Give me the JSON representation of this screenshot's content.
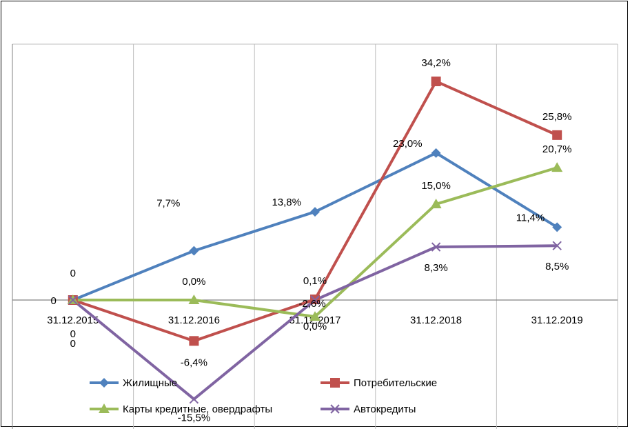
{
  "chart_data": {
    "type": "line",
    "categories": [
      "31.12.2015",
      "31.12.2016",
      "31.12.2017",
      "31.12.2018",
      "31.12.2019"
    ],
    "ylim": [
      -20,
      40
    ],
    "grid": "vertical",
    "legend_position": "bottom",
    "series": [
      {
        "name": "Жилищные",
        "values": [
          0,
          7.7,
          13.8,
          23.0,
          11.4
        ],
        "labels": [
          "0",
          "7,7%",
          "13,8%",
          "23,0%",
          "11,4%"
        ],
        "color": "#4F81BD",
        "marker": "diamond"
      },
      {
        "name": "Потребительские",
        "values": [
          0,
          -6.4,
          0.1,
          34.2,
          25.8
        ],
        "labels": [
          "0",
          "-6,4%",
          "0,1%",
          "34,2%",
          "25,8%"
        ],
        "color": "#C0504D",
        "marker": "square"
      },
      {
        "name": "Карты кредитные, овердрафты",
        "values": [
          0,
          0.0,
          -2.6,
          15.0,
          20.7
        ],
        "labels": [
          "0",
          "0,0%",
          "-2,6%",
          "15,0%",
          "20,7%"
        ],
        "color": "#9BBB59",
        "marker": "triangle"
      },
      {
        "name": "Автокредиты",
        "values": [
          0,
          -15.5,
          0.0,
          8.3,
          8.5
        ],
        "labels": [
          "0",
          "-15,5%",
          "0,0%",
          "8,3%",
          "8,5%"
        ],
        "color": "#8064A2",
        "marker": "x"
      }
    ]
  }
}
